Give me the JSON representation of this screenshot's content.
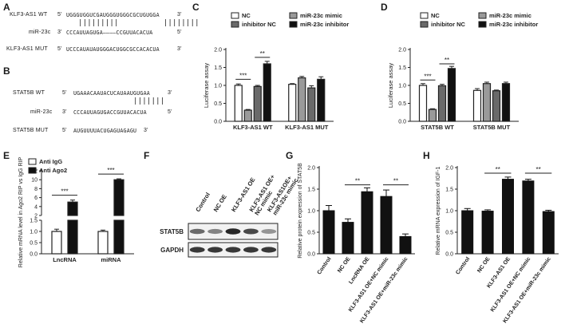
{
  "panels": {
    "A": {
      "label": "A",
      "rows": [
        {
          "name": "KLF3-AS1 WT",
          "dir5": "5'",
          "seq": "UGGGUGGUCGAUGGGUGGGCGCUGUGGA",
          "dir3": "3'"
        },
        {
          "name": "miR-23c",
          "dir5": "3'",
          "seq": "CCCAUUAGUGA————CCGUUACACUA",
          "dir3": "5'"
        },
        {
          "name": "KLF3-AS1 MUT",
          "dir5": "5'",
          "seq": "UCCCAUAUAUGGGACUGGCGCCACACUA",
          "dir3": "3'"
        }
      ],
      "pairs": "|||||||||          ||||||||"
    },
    "B": {
      "label": "B",
      "rows": [
        {
          "name": "STAT5B WT",
          "dir5": "5'",
          "seq": "UGAAACAAUACUCAUAAUGUGAA",
          "dir3": "3'"
        },
        {
          "name": "miR-23c",
          "dir5": "3'",
          "seq": "CCCAUUAGUGACCGUUACACUA",
          "dir3": "5'"
        },
        {
          "name": "STAT5B MUT",
          "dir5": "5'",
          "seq": "AUGUUUUACUGAGUAGAGU",
          "dir3": "3'"
        }
      ],
      "pairs": "|||||||"
    },
    "C": {
      "label": "C"
    },
    "D": {
      "label": "D"
    },
    "E": {
      "label": "E"
    },
    "F": {
      "label": "F",
      "lanes": [
        "Control",
        "NC OE",
        "KLF3-AS1 OE",
        "KLF3-AS1 OE+ NC mimic",
        "KLF3-AS1OE+ miR-23c mimic"
      ],
      "rows": [
        "STAT5B",
        "GAPDH"
      ],
      "stat5b_intensity": [
        0.55,
        0.4,
        0.95,
        0.75,
        0.3
      ],
      "gapdh_intensity": [
        0.85,
        0.85,
        0.85,
        0.85,
        0.85
      ]
    },
    "G": {
      "label": "G"
    },
    "H": {
      "label": "H"
    }
  },
  "chart_data": [
    {
      "id": "C",
      "type": "bar",
      "categories": [
        "KLF3-AS1 WT",
        "KLF3-AS1 MUT"
      ],
      "ylabel": "Luciferase assay",
      "ylim": [
        0.0,
        2.0
      ],
      "yticks": [
        "0.0",
        "0.5",
        "1.0",
        "1.5",
        "2.0"
      ],
      "series": [
        {
          "name": "NC",
          "values": [
            1.0,
            1.03
          ],
          "errors": [
            0.04,
            0.02
          ],
          "fill": "#ffffff"
        },
        {
          "name": "miR-23c mimic",
          "values": [
            0.31,
            1.21
          ],
          "errors": [
            0.02,
            0.04
          ],
          "fill": "#9a9a9a"
        },
        {
          "name": "inhibitor NC",
          "values": [
            0.97,
            0.93
          ],
          "errors": [
            0.03,
            0.06
          ],
          "fill": "#6a6a6a"
        },
        {
          "name": "miR-23c inhibitor",
          "values": [
            1.6,
            1.17
          ],
          "errors": [
            0.07,
            0.07
          ],
          "fill": "#111111"
        }
      ],
      "significance": [
        {
          "from": 0,
          "to": 1,
          "group": 0,
          "label": "***",
          "y": 1.17
        },
        {
          "from": 2,
          "to": 3,
          "group": 0,
          "label": "**",
          "y": 1.78
        }
      ],
      "legend": "top"
    },
    {
      "id": "D",
      "type": "bar",
      "categories": [
        "STAT5B WT",
        "STAT5B MUT"
      ],
      "ylabel": "Luciferase assay",
      "ylim": [
        0.0,
        2.0
      ],
      "yticks": [
        "0.0",
        "0.5",
        "1.0",
        "1.5",
        "2.0"
      ],
      "series": [
        {
          "name": "NC",
          "values": [
            1.0,
            0.86
          ],
          "errors": [
            0.05,
            0.05
          ],
          "fill": "#ffffff"
        },
        {
          "name": "miR-23c mimic",
          "values": [
            0.33,
            1.05
          ],
          "errors": [
            0.02,
            0.04
          ],
          "fill": "#9a9a9a"
        },
        {
          "name": "inhibitor NC",
          "values": [
            0.99,
            0.85
          ],
          "errors": [
            0.04,
            0.02
          ],
          "fill": "#6a6a6a"
        },
        {
          "name": "miR-23c inhibitor",
          "values": [
            1.47,
            1.05
          ],
          "errors": [
            0.06,
            0.04
          ],
          "fill": "#111111"
        }
      ],
      "significance": [
        {
          "from": 0,
          "to": 1,
          "group": 0,
          "label": "***",
          "y": 1.15
        },
        {
          "from": 2,
          "to": 3,
          "group": 0,
          "label": "**",
          "y": 1.6
        }
      ],
      "legend": "top"
    },
    {
      "id": "E",
      "type": "bar",
      "categories": [
        "LncRNA",
        "miRNA"
      ],
      "ylabel": "Relative mRNA level in Ago2 RIP vs IgG RIP",
      "yticks": [
        "0.0",
        "0.5",
        "1.0",
        "1.5",
        "2",
        "4",
        "6",
        "8",
        "10",
        "12"
      ],
      "ylim": [
        0,
        12
      ],
      "broken_axis": true,
      "series": [
        {
          "name": "Anti IgG",
          "values": [
            1.0,
            1.0
          ],
          "errors": [
            0.1,
            0.06
          ],
          "fill": "#ffffff"
        },
        {
          "name": "Anti Ago2",
          "values": [
            5.0,
            10.0
          ],
          "errors": [
            0.45,
            0.2
          ],
          "fill": "#111111"
        }
      ],
      "significance": [
        {
          "group": 0,
          "label": "***"
        },
        {
          "group": 1,
          "label": "***"
        }
      ],
      "legend": "top-left"
    },
    {
      "id": "G",
      "type": "bar",
      "categories": [
        "Control",
        "NC OE",
        "LncRNA OE",
        "KLF3-AS1 OE+NC mimic",
        "KLF3-AS1 OE+miR-23c mimic"
      ],
      "ylabel": "Relative protein expression of STAT5B",
      "ylim": [
        0.0,
        2.0
      ],
      "yticks": [
        "0.0",
        "0.5",
        "1.0",
        "1.5",
        "2.0"
      ],
      "values": [
        1.0,
        0.73,
        1.44,
        1.33,
        0.4
      ],
      "errors": [
        0.12,
        0.08,
        0.09,
        0.15,
        0.06
      ],
      "significance": [
        {
          "from": 1,
          "to": 2,
          "label": "**",
          "y": 1.6
        },
        {
          "from": 3,
          "to": 4,
          "label": "**",
          "y": 1.6
        }
      ]
    },
    {
      "id": "H",
      "type": "bar",
      "categories": [
        "Control",
        "NC OE",
        "KLF3-AS1 OE",
        "KLF3-AS1 OE+NC mimic",
        "KLF3-AS1 OE+miR-23c mimic"
      ],
      "ylabel": "Relative mRNA expression of IGF-1",
      "ylim": [
        0.0,
        2.0
      ],
      "yticks": [
        "0.0",
        "0.5",
        "1.0",
        "1.5",
        "2.0"
      ],
      "values": [
        1.0,
        0.99,
        1.73,
        1.69,
        0.98
      ],
      "errors": [
        0.05,
        0.03,
        0.05,
        0.04,
        0.03
      ],
      "significance": [
        {
          "from": 1,
          "to": 2,
          "label": "**",
          "y": 1.87
        },
        {
          "from": 3,
          "to": 4,
          "label": "**",
          "y": 1.87
        }
      ]
    }
  ]
}
